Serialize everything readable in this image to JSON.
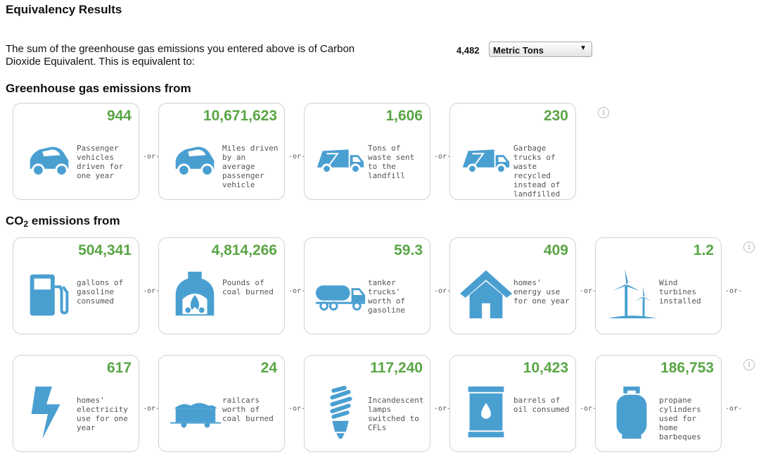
{
  "title": "Equivalency Results",
  "intro_text": "The sum of the greenhouse gas emissions you entered above is of Carbon Dioxide Equivalent. This is equivalent to:",
  "amount": "4,482",
  "unit_select": {
    "selected": "Metric Tons",
    "arrow_icon": "▼"
  },
  "info_glyph": "i",
  "or_label": "-or-",
  "colors": {
    "value_green": "#5aa546",
    "icon_blue": "#4a9fd1"
  },
  "sections": {
    "ghg": {
      "heading": "Greenhouse gas emissions from",
      "cards": [
        {
          "value": "944",
          "desc": "Passenger vehicles driven for one year",
          "icon": "car-icon"
        },
        {
          "value": "10,671,623",
          "desc": "Miles driven by an average passenger vehicle",
          "icon": "car-icon"
        },
        {
          "value": "1,606",
          "desc": "Tons of waste sent to the landfill",
          "icon": "garbage-truck-icon"
        },
        {
          "value": "230",
          "desc": "Garbage trucks of waste recycled instead of landfilled",
          "icon": "garbage-truck-icon"
        }
      ]
    },
    "co2": {
      "heading_prefix": "CO",
      "heading_sub": "2",
      "heading_suffix": " emissions from",
      "cards": [
        {
          "value": "504,341",
          "desc": "gallons of gasoline consumed",
          "icon": "gas-pump-icon"
        },
        {
          "value": "4,814,266",
          "desc": "Pounds of coal burned",
          "icon": "coal-furnace-icon"
        },
        {
          "value": "59.3",
          "desc": "tanker trucks' worth of gasoline",
          "icon": "tanker-truck-icon"
        },
        {
          "value": "409",
          "desc": "homes' energy use for one year",
          "icon": "house-icon"
        },
        {
          "value": "1.2",
          "desc": "Wind turbines installed",
          "icon": "wind-turbine-icon"
        },
        {
          "value": "617",
          "desc": "homes' electricity use for one year",
          "icon": "lightning-icon"
        },
        {
          "value": "24",
          "desc": "railcars worth of coal burned",
          "icon": "railcar-icon"
        },
        {
          "value": "117,240",
          "desc": "Incandescent lamps switched to CFLs",
          "icon": "cfl-bulb-icon"
        },
        {
          "value": "10,423",
          "desc": "barrels of oil consumed",
          "icon": "oil-barrel-icon"
        },
        {
          "value": "186,753",
          "desc": "propane cylinders used for home barbeques",
          "icon": "propane-cylinder-icon"
        }
      ]
    }
  }
}
